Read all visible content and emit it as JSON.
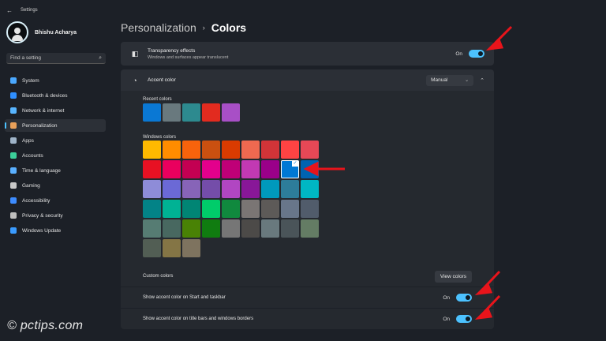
{
  "window": {
    "title": "Settings"
  },
  "profile": {
    "name": "Bhishu Acharya"
  },
  "search": {
    "placeholder": "Find a setting"
  },
  "sidebar": {
    "items": [
      {
        "label": "System",
        "icon": "monitor-icon",
        "color": "#4aa8ff"
      },
      {
        "label": "Bluetooth & devices",
        "icon": "bluetooth-icon",
        "color": "#2f8fff"
      },
      {
        "label": "Network & internet",
        "icon": "wifi-icon",
        "color": "#58b5ff"
      },
      {
        "label": "Personalization",
        "icon": "brush-icon",
        "color": "#e8a05a",
        "active": true
      },
      {
        "label": "Apps",
        "icon": "apps-icon",
        "color": "#9fb4c8"
      },
      {
        "label": "Accounts",
        "icon": "person-icon",
        "color": "#3ccf9a"
      },
      {
        "label": "Time & language",
        "icon": "globe-clock-icon",
        "color": "#5ab0ff"
      },
      {
        "label": "Gaming",
        "icon": "controller-icon",
        "color": "#c8c8c8"
      },
      {
        "label": "Accessibility",
        "icon": "accessibility-icon",
        "color": "#3d8cff"
      },
      {
        "label": "Privacy & security",
        "icon": "shield-icon",
        "color": "#bfbfbf"
      },
      {
        "label": "Windows Update",
        "icon": "update-icon",
        "color": "#3a9bff"
      }
    ]
  },
  "breadcrumb": {
    "parent": "Personalization",
    "separator": "›",
    "current": "Colors"
  },
  "transparency": {
    "title": "Transparency effects",
    "subtitle": "Windows and surfaces appear translucent",
    "state": "On"
  },
  "accent": {
    "title": "Accent color",
    "mode": "Manual",
    "recent_label": "Recent colors",
    "recent": [
      "#0a78d4",
      "#69797e",
      "#2d8a8f",
      "#e22b1f",
      "#a84fc6"
    ],
    "windows_label": "Windows colors",
    "windows": [
      [
        "#ffb900",
        "#ff8c00",
        "#f7630c",
        "#ca5010",
        "#da3b01",
        "#ef6950",
        "#d13438",
        "#ff4343",
        "#e74856"
      ],
      [
        "#e81123",
        "#ea005e",
        "#c30052",
        "#e3008c",
        "#bf0077",
        "#c239b3",
        "#9a0089",
        "#0078d4",
        "#0063b1"
      ],
      [
        "#8e8cd8",
        "#6b69d6",
        "#8764b8",
        "#744da9",
        "#b146c2",
        "#881798",
        "#0099bc",
        "#2d7d9a",
        "#00b7c3"
      ],
      [
        "#038387",
        "#00b294",
        "#018574",
        "#00cc6a",
        "#10893e",
        "#7a7574",
        "#5d5a58",
        "#68768a",
        "#515c6b"
      ],
      [
        "#567c73",
        "#486860",
        "#498205",
        "#107c10",
        "#767676",
        "#4c4a48",
        "#69797e",
        "#4a5459",
        "#647c64"
      ],
      [
        "#525e54",
        "#847545",
        "#7e735f"
      ]
    ],
    "selected": {
      "row": 1,
      "col": 7
    },
    "custom_label": "Custom colors",
    "view_colors_label": "View colors"
  },
  "start_taskbar": {
    "label": "Show accent color on Start and taskbar",
    "state": "On"
  },
  "title_bars": {
    "label": "Show accent color on title bars and windows borders",
    "state": "On"
  },
  "colors": {
    "toggle_on": "#4cc2ff",
    "annotation": "#e8141b"
  },
  "watermark": {
    "text": "© pctips.com"
  }
}
